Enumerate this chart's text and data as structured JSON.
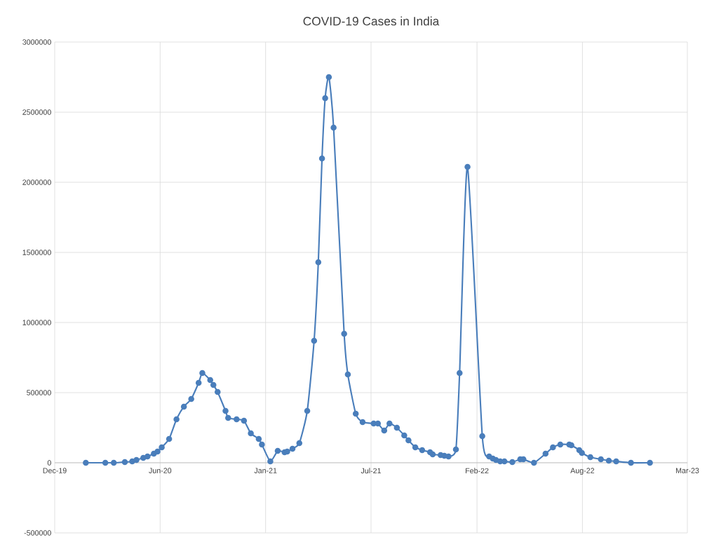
{
  "chart_data": {
    "type": "line",
    "title": "COVID-19 Cases in India",
    "x": [
      "2020-01-29",
      "2020-03-06",
      "2020-03-22",
      "2020-04-12",
      "2020-04-26",
      "2020-05-04",
      "2020-05-17",
      "2020-05-25",
      "2020-06-06",
      "2020-06-13",
      "2020-06-21",
      "2020-07-05",
      "2020-07-19",
      "2020-08-02",
      "2020-08-16",
      "2020-08-30",
      "2020-09-06",
      "2020-09-21",
      "2020-09-27",
      "2020-10-05",
      "2020-10-20",
      "2020-10-25",
      "2020-11-10",
      "2020-11-24",
      "2020-12-07",
      "2020-12-22",
      "2020-12-28",
      "2021-01-13",
      "2021-01-27",
      "2021-02-09",
      "2021-02-14",
      "2021-02-24",
      "2021-03-09",
      "2021-03-24",
      "2021-04-06",
      "2021-04-14",
      "2021-04-21",
      "2021-04-27",
      "2021-05-04",
      "2021-05-13",
      "2021-06-02",
      "2021-06-09",
      "2021-06-24",
      "2021-07-07",
      "2021-07-28",
      "2021-08-05",
      "2021-08-17",
      "2021-08-27",
      "2021-09-10",
      "2021-09-24",
      "2021-10-02",
      "2021-10-15",
      "2021-10-28",
      "2021-11-12",
      "2021-11-17",
      "2021-12-02",
      "2021-12-09",
      "2021-12-17",
      "2021-12-31",
      "2022-01-07",
      "2022-01-22",
      "2022-02-19",
      "2022-03-04",
      "2022-03-11",
      "2022-03-17",
      "2022-03-25",
      "2022-04-02",
      "2022-04-17",
      "2022-05-02",
      "2022-05-08",
      "2022-05-28",
      "2022-06-19",
      "2022-07-03",
      "2022-07-17",
      "2022-08-03",
      "2022-08-07",
      "2022-08-22",
      "2022-08-27",
      "2022-09-12",
      "2022-10-02",
      "2022-10-17",
      "2022-10-31",
      "2022-11-28",
      "2023-01-03"
    ],
    "series": [
      {
        "color": "#4a7ebb",
        "values": [
          0,
          0,
          0,
          5000,
          10000,
          20000,
          35000,
          45000,
          65000,
          80000,
          110000,
          170000,
          310000,
          400000,
          455000,
          570000,
          640000,
          590000,
          555000,
          505000,
          370000,
          320000,
          310000,
          300000,
          210000,
          170000,
          130000,
          10000,
          85000,
          75000,
          80000,
          100000,
          140000,
          370000,
          870000,
          1430000,
          2170000,
          2600000,
          2750000,
          2390000,
          920000,
          630000,
          350000,
          290000,
          280000,
          280000,
          230000,
          280000,
          250000,
          195000,
          160000,
          110000,
          90000,
          75000,
          60000,
          55000,
          50000,
          45000,
          95000,
          640000,
          2110000,
          190000,
          45000,
          30000,
          20000,
          10000,
          10000,
          5000,
          25000,
          25000,
          0,
          65000,
          110000,
          130000,
          130000,
          125000,
          90000,
          70000,
          40000,
          25000,
          15000,
          10000,
          0,
          0
        ]
      }
    ],
    "xlim": [
      "2019-12-01",
      "2023-03-15"
    ],
    "xticks": [
      {
        "value": "2019-12-01",
        "label": "Dec-19"
      },
      {
        "value": "2020-06-18",
        "label": "Jun-20"
      },
      {
        "value": "2021-01-04",
        "label": "Jan-21"
      },
      {
        "value": "2021-07-23",
        "label": "Jul-21"
      },
      {
        "value": "2022-02-09",
        "label": "Feb-22"
      },
      {
        "value": "2022-08-28",
        "label": "Aug-22"
      },
      {
        "value": "2023-03-15",
        "label": "Mar-23"
      }
    ],
    "ylim": [
      -500000,
      3000000
    ],
    "yticks": [
      -500000,
      0,
      500000,
      1000000,
      1500000,
      2000000,
      2500000,
      3000000
    ],
    "grid": true,
    "marker": "circle",
    "line_style": "solid"
  }
}
